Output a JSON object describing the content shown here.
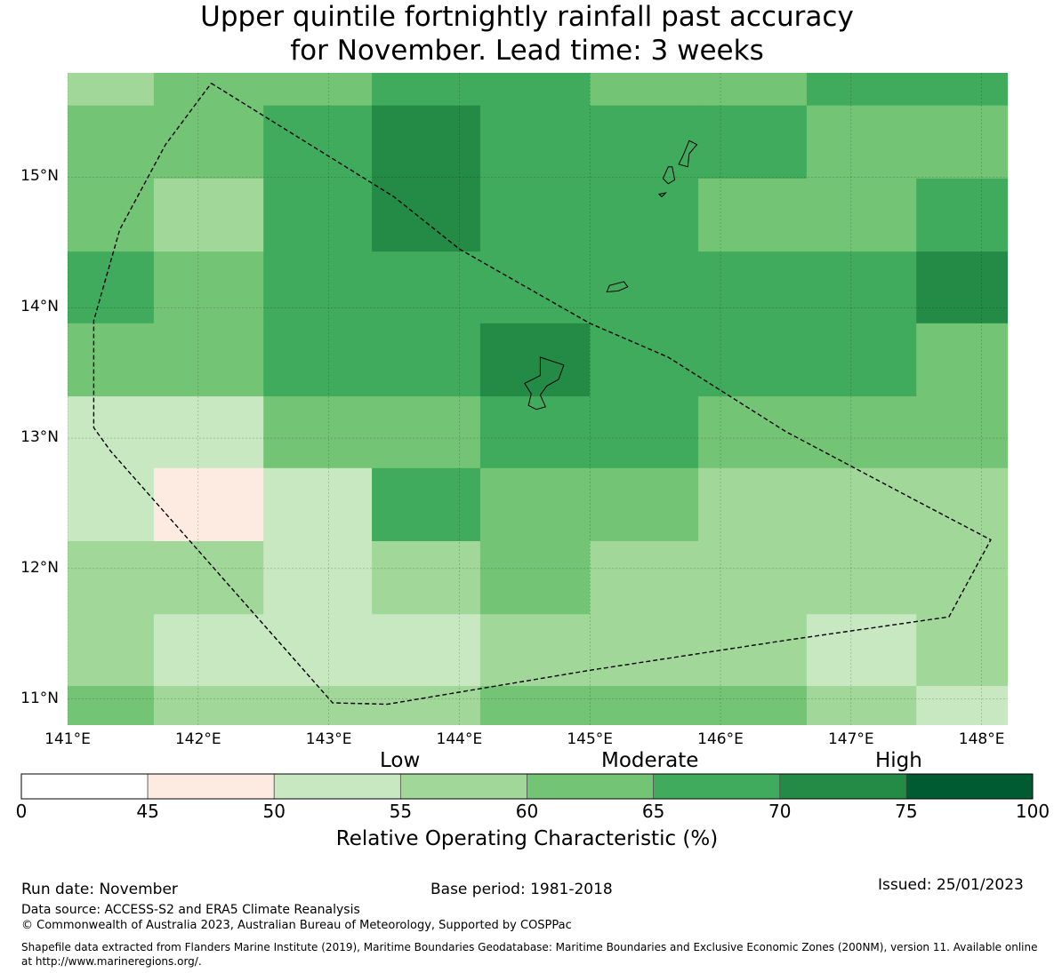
{
  "title": {
    "line1": "Upper quintile fortnightly rainfall past accuracy",
    "line2": "for November. Lead time: 3 weeks"
  },
  "map": {
    "lon_range": [
      141.0,
      148.2
    ],
    "lat_range": [
      10.8,
      15.8
    ],
    "lat_ticks": [
      {
        "value": 15,
        "label": "15°N"
      },
      {
        "value": 14,
        "label": "14°N"
      },
      {
        "value": 13,
        "label": "13°N"
      },
      {
        "value": 12,
        "label": "12°N"
      },
      {
        "value": 11,
        "label": "11°N"
      }
    ],
    "lon_ticks": [
      {
        "value": 141,
        "label": "141°E"
      },
      {
        "value": 142,
        "label": "142°E"
      },
      {
        "value": 143,
        "label": "143°E"
      },
      {
        "value": 144,
        "label": "144°E"
      },
      {
        "value": 145,
        "label": "145°E"
      },
      {
        "value": 146,
        "label": "146°E"
      },
      {
        "value": 147,
        "label": "147°E"
      },
      {
        "value": 148,
        "label": "148°E"
      }
    ],
    "lon_edges": [
      141.0,
      141.66,
      142.5,
      143.33,
      144.16,
      145.0,
      145.83,
      146.66,
      147.5,
      148.2
    ],
    "lat_edges": [
      15.8,
      15.55,
      14.99,
      14.43,
      13.88,
      13.32,
      12.77,
      12.21,
      11.65,
      11.1,
      10.8
    ],
    "roc_grid": [
      [
        57,
        62,
        62,
        67,
        67,
        62,
        62,
        67,
        67
      ],
      [
        62,
        62,
        67,
        72,
        67,
        67,
        67,
        62,
        62
      ],
      [
        62,
        57,
        67,
        72,
        67,
        67,
        62,
        62,
        67
      ],
      [
        67,
        62,
        67,
        67,
        67,
        67,
        67,
        67,
        72
      ],
      [
        62,
        62,
        67,
        67,
        72,
        67,
        67,
        67,
        62
      ],
      [
        52,
        52,
        62,
        62,
        67,
        67,
        62,
        62,
        62
      ],
      [
        52,
        47,
        52,
        67,
        62,
        62,
        57,
        57,
        57
      ],
      [
        57,
        57,
        52,
        57,
        62,
        57,
        57,
        57,
        57
      ],
      [
        57,
        52,
        52,
        52,
        57,
        57,
        57,
        52,
        57
      ],
      [
        62,
        57,
        57,
        57,
        62,
        62,
        62,
        57,
        52
      ]
    ],
    "eez_boundary": [
      [
        142.1,
        15.72
      ],
      [
        143.5,
        14.85
      ],
      [
        144.0,
        14.45
      ],
      [
        145.0,
        13.88
      ],
      [
        145.6,
        13.62
      ],
      [
        146.5,
        13.05
      ],
      [
        147.5,
        12.52
      ],
      [
        148.07,
        12.22
      ],
      [
        147.75,
        11.63
      ],
      [
        146.5,
        11.45
      ],
      [
        145.0,
        11.22
      ],
      [
        143.45,
        10.96
      ],
      [
        143.03,
        10.97
      ],
      [
        141.33,
        12.9
      ],
      [
        141.2,
        13.08
      ],
      [
        141.2,
        13.9
      ],
      [
        141.4,
        14.6
      ],
      [
        141.75,
        15.25
      ],
      [
        142.1,
        15.72
      ]
    ],
    "islands": [
      [
        [
          144.62,
          13.62
        ],
        [
          144.8,
          13.56
        ],
        [
          144.76,
          13.45
        ],
        [
          144.67,
          13.4
        ],
        [
          144.62,
          13.33
        ],
        [
          144.66,
          13.24
        ],
        [
          144.59,
          13.22
        ],
        [
          144.53,
          13.25
        ],
        [
          144.55,
          13.34
        ],
        [
          144.5,
          13.42
        ],
        [
          144.62,
          13.48
        ],
        [
          144.62,
          13.62
        ]
      ],
      [
        [
          145.26,
          14.2
        ],
        [
          145.29,
          14.16
        ],
        [
          145.22,
          14.13
        ],
        [
          145.13,
          14.12
        ],
        [
          145.15,
          14.17
        ],
        [
          145.26,
          14.2
        ]
      ],
      [
        [
          145.76,
          15.28
        ],
        [
          145.82,
          15.25
        ],
        [
          145.76,
          15.18
        ],
        [
          145.75,
          15.08
        ],
        [
          145.68,
          15.1
        ],
        [
          145.72,
          15.18
        ],
        [
          145.76,
          15.28
        ]
      ],
      [
        [
          145.63,
          15.08
        ],
        [
          145.65,
          14.98
        ],
        [
          145.6,
          14.95
        ],
        [
          145.56,
          14.99
        ],
        [
          145.6,
          15.08
        ],
        [
          145.63,
          15.08
        ]
      ],
      [
        [
          145.58,
          14.88
        ],
        [
          145.55,
          14.85
        ],
        [
          145.53,
          14.87
        ],
        [
          145.58,
          14.88
        ]
      ]
    ]
  },
  "colorbar": {
    "bounds": [
      0,
      45,
      50,
      55,
      60,
      65,
      70,
      75,
      100
    ],
    "colors": [
      "#ffffff",
      "#fdebe1",
      "#c7e8c1",
      "#a1d899",
      "#74c476",
      "#41ab5d",
      "#238b45",
      "#005a32"
    ],
    "tick_labels": [
      "0",
      "45",
      "50",
      "55",
      "60",
      "65",
      "70",
      "75",
      "100"
    ],
    "categories": [
      "Low",
      "Moderate",
      "High"
    ],
    "label": "Relative Operating Characteristic (%)"
  },
  "footer": {
    "run_date": "Run date: November",
    "base_period": "Base period: 1981-2018",
    "issued": "Issued: 25/01/2023",
    "data_source": "Data source: ACCESS-S2 and ERA5 Climate Reanalysis",
    "copyright": "© Commonwealth of Australia 2023, Australian Bureau of Meteorology, Supported by COSPPac",
    "shapefile_note": "Shapefile data extracted from Flanders Marine Institute (2019), Maritime Boundaries Geodatabase: Maritime Boundaries and Exclusive Economic Zones (200NM), version 11. Available online at http://www.marineregions.org/."
  }
}
